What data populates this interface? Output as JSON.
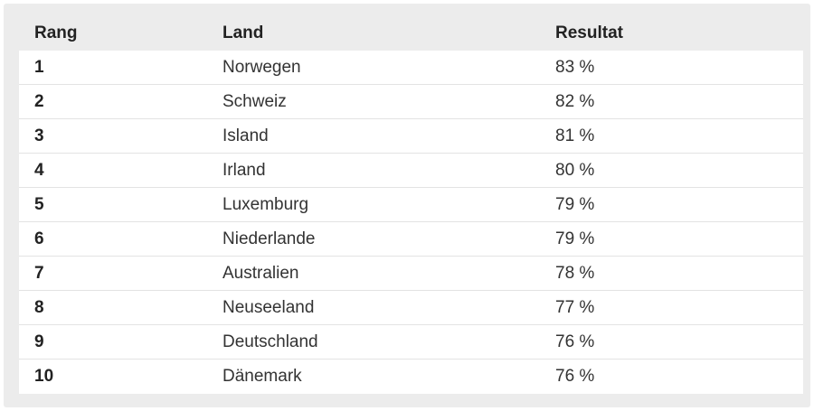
{
  "table": {
    "headers": {
      "rank": "Rang",
      "country": "Land",
      "result": "Resultat"
    },
    "rows": [
      {
        "rank": "1",
        "country": "Norwegen",
        "result": "83 %"
      },
      {
        "rank": "2",
        "country": "Schweiz",
        "result": "82 %"
      },
      {
        "rank": "3",
        "country": "Island",
        "result": "81 %"
      },
      {
        "rank": "4",
        "country": "Irland",
        "result": "80 %"
      },
      {
        "rank": "5",
        "country": "Luxemburg",
        "result": "79 %"
      },
      {
        "rank": "6",
        "country": "Niederlande",
        "result": "79 %"
      },
      {
        "rank": "7",
        "country": "Australien",
        "result": "78 %"
      },
      {
        "rank": "8",
        "country": "Neuseeland",
        "result": "77 %"
      },
      {
        "rank": "9",
        "country": "Deutschland",
        "result": "76 %"
      },
      {
        "rank": "10",
        "country": "Dänemark",
        "result": "76 %"
      }
    ]
  }
}
